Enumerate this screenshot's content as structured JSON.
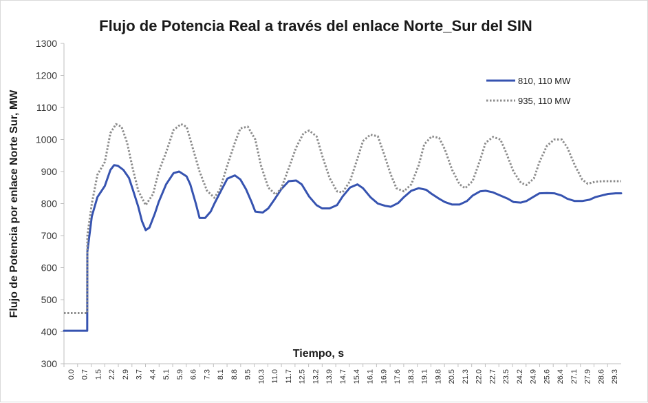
{
  "chart_data": {
    "type": "line",
    "title": "Flujo de Potencia Real a través del enlace Norte_Sur del SIN",
    "xlabel": "Tiempo, s",
    "ylabel": "Flujo de Potencia por enlace Norte Sur, MW",
    "ylim": [
      300,
      1300
    ],
    "yticks": [
      300,
      400,
      500,
      600,
      700,
      800,
      900,
      1000,
      1100,
      1200,
      1300
    ],
    "xlim": [
      0,
      30
    ],
    "xticks": [
      "0.0",
      "0.7",
      "1.5",
      "2.2",
      "2.9",
      "3.7",
      "4.4",
      "5.1",
      "5.9",
      "6.6",
      "7.3",
      "8.1",
      "8.8",
      "9.5",
      "10.3",
      "11.0",
      "11.7",
      "12.5",
      "13.2",
      "13.9",
      "14.7",
      "15.4",
      "16.1",
      "16.9",
      "17.6",
      "18.3",
      "19.1",
      "19.8",
      "20.5",
      "21.3",
      "22.0",
      "22.7",
      "23.5",
      "24.2",
      "24.9",
      "25.6",
      "26.4",
      "27.1",
      "27.9",
      "28.6",
      "29.3"
    ],
    "grid": "vertical lines at left only (none)",
    "legend_position": "top-right",
    "series": [
      {
        "name": "810, 110  MW",
        "color": "#3653b0",
        "style": "solid",
        "x": [
          0.0,
          0.7,
          1.25,
          1.26,
          1.5,
          1.8,
          2.2,
          2.5,
          2.7,
          2.9,
          3.2,
          3.5,
          3.7,
          4.0,
          4.2,
          4.4,
          4.6,
          4.9,
          5.1,
          5.5,
          5.9,
          6.2,
          6.6,
          6.8,
          7.1,
          7.3,
          7.6,
          7.9,
          8.1,
          8.5,
          8.8,
          9.2,
          9.5,
          9.8,
          10.1,
          10.3,
          10.7,
          11.0,
          11.3,
          11.7,
          12.1,
          12.5,
          12.8,
          13.2,
          13.6,
          13.9,
          14.3,
          14.7,
          15.0,
          15.4,
          15.8,
          16.1,
          16.5,
          16.9,
          17.3,
          17.6,
          18.0,
          18.3,
          18.7,
          19.1,
          19.5,
          19.8,
          20.2,
          20.5,
          20.9,
          21.3,
          21.7,
          22.0,
          22.4,
          22.7,
          23.1,
          23.5,
          23.9,
          24.2,
          24.6,
          24.9,
          25.3,
          25.6,
          26.0,
          26.4,
          26.8,
          27.1,
          27.5,
          27.9,
          28.3,
          28.6,
          29.0,
          29.3,
          29.7,
          30.0
        ],
        "y": [
          403,
          403,
          403,
          650,
          760,
          820,
          855,
          905,
          920,
          918,
          905,
          880,
          845,
          790,
          745,
          717,
          725,
          770,
          805,
          860,
          895,
          900,
          885,
          860,
          800,
          755,
          755,
          775,
          800,
          845,
          878,
          888,
          875,
          845,
          805,
          775,
          772,
          785,
          810,
          845,
          870,
          872,
          860,
          822,
          795,
          785,
          785,
          795,
          822,
          850,
          860,
          848,
          820,
          800,
          793,
          790,
          802,
          820,
          840,
          848,
          843,
          830,
          815,
          805,
          797,
          797,
          808,
          825,
          838,
          840,
          835,
          825,
          815,
          805,
          803,
          808,
          822,
          832,
          833,
          832,
          825,
          815,
          808,
          808,
          812,
          820,
          826,
          830,
          832,
          832
        ]
      },
      {
        "name": "935, 110  MW",
        "color": "#8c8c8c",
        "style": "dotted",
        "x": [
          0.0,
          0.7,
          1.25,
          1.26,
          1.5,
          1.8,
          2.2,
          2.5,
          2.8,
          3.1,
          3.4,
          3.7,
          4.0,
          4.4,
          4.8,
          5.1,
          5.5,
          5.9,
          6.3,
          6.6,
          6.9,
          7.3,
          7.7,
          8.1,
          8.4,
          8.8,
          9.2,
          9.5,
          9.9,
          10.3,
          10.6,
          11.0,
          11.4,
          11.7,
          12.1,
          12.5,
          12.9,
          13.2,
          13.6,
          13.9,
          14.3,
          14.7,
          15.0,
          15.4,
          15.8,
          16.1,
          16.5,
          16.9,
          17.2,
          17.6,
          17.9,
          18.3,
          18.7,
          19.1,
          19.4,
          19.8,
          20.2,
          20.5,
          20.9,
          21.3,
          21.6,
          22.0,
          22.4,
          22.7,
          23.1,
          23.5,
          23.8,
          24.2,
          24.6,
          24.9,
          25.3,
          25.6,
          26.0,
          26.4,
          26.8,
          27.1,
          27.5,
          27.9,
          28.2,
          28.6,
          29.0,
          29.3,
          29.7,
          30.0
        ],
        "y": [
          458,
          458,
          458,
          700,
          800,
          890,
          930,
          1020,
          1048,
          1040,
          990,
          910,
          840,
          795,
          830,
          900,
          960,
          1030,
          1048,
          1040,
          980,
          900,
          840,
          818,
          845,
          920,
          990,
          1035,
          1040,
          1000,
          920,
          850,
          828,
          848,
          910,
          975,
          1020,
          1028,
          1010,
          950,
          880,
          838,
          835,
          870,
          940,
          995,
          1015,
          1010,
          960,
          890,
          848,
          838,
          860,
          920,
          985,
          1010,
          1005,
          970,
          905,
          860,
          848,
          870,
          935,
          990,
          1008,
          1000,
          960,
          900,
          865,
          858,
          878,
          930,
          980,
          1000,
          1000,
          975,
          920,
          875,
          862,
          868,
          870,
          870,
          870,
          870
        ]
      }
    ]
  }
}
